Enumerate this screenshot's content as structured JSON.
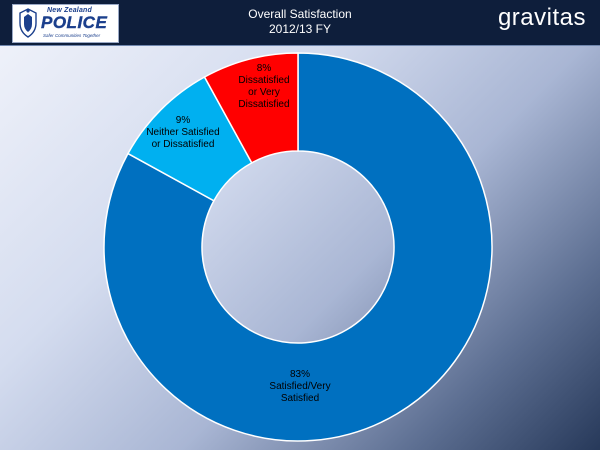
{
  "header": {
    "logo": {
      "line1": "New Zealand",
      "wordmark": "POLICE",
      "motto": "Safer Communities Together"
    },
    "title": "Overall Satisfaction",
    "subtitle": "2012/13 FY",
    "brand": "gravitas"
  },
  "chart_data": {
    "type": "pie",
    "donut": true,
    "title": "Overall Satisfaction",
    "subtitle": "2012/13 FY",
    "legend": "none",
    "slices": [
      {
        "label": "Satisfied/Very Satisfied",
        "value": 83,
        "value_label": "83%",
        "color": "#0070c0",
        "label_lines": [
          "83%",
          "Satisfied/Very",
          "Satisfied"
        ]
      },
      {
        "label": "Neither Satisfied or Dissatisfied",
        "value": 9,
        "value_label": "9%",
        "color": "#00b0f0",
        "label_lines": [
          "9%",
          "Neither Satisfied",
          "or Dissatisfied"
        ]
      },
      {
        "label": "Dissatisfied or Very Dissatisfied",
        "value": 8,
        "value_label": "8%",
        "color": "#ff0000",
        "label_lines": [
          "8%",
          "Dissatisfied",
          "or Very",
          "Dissatisfied"
        ]
      }
    ]
  }
}
